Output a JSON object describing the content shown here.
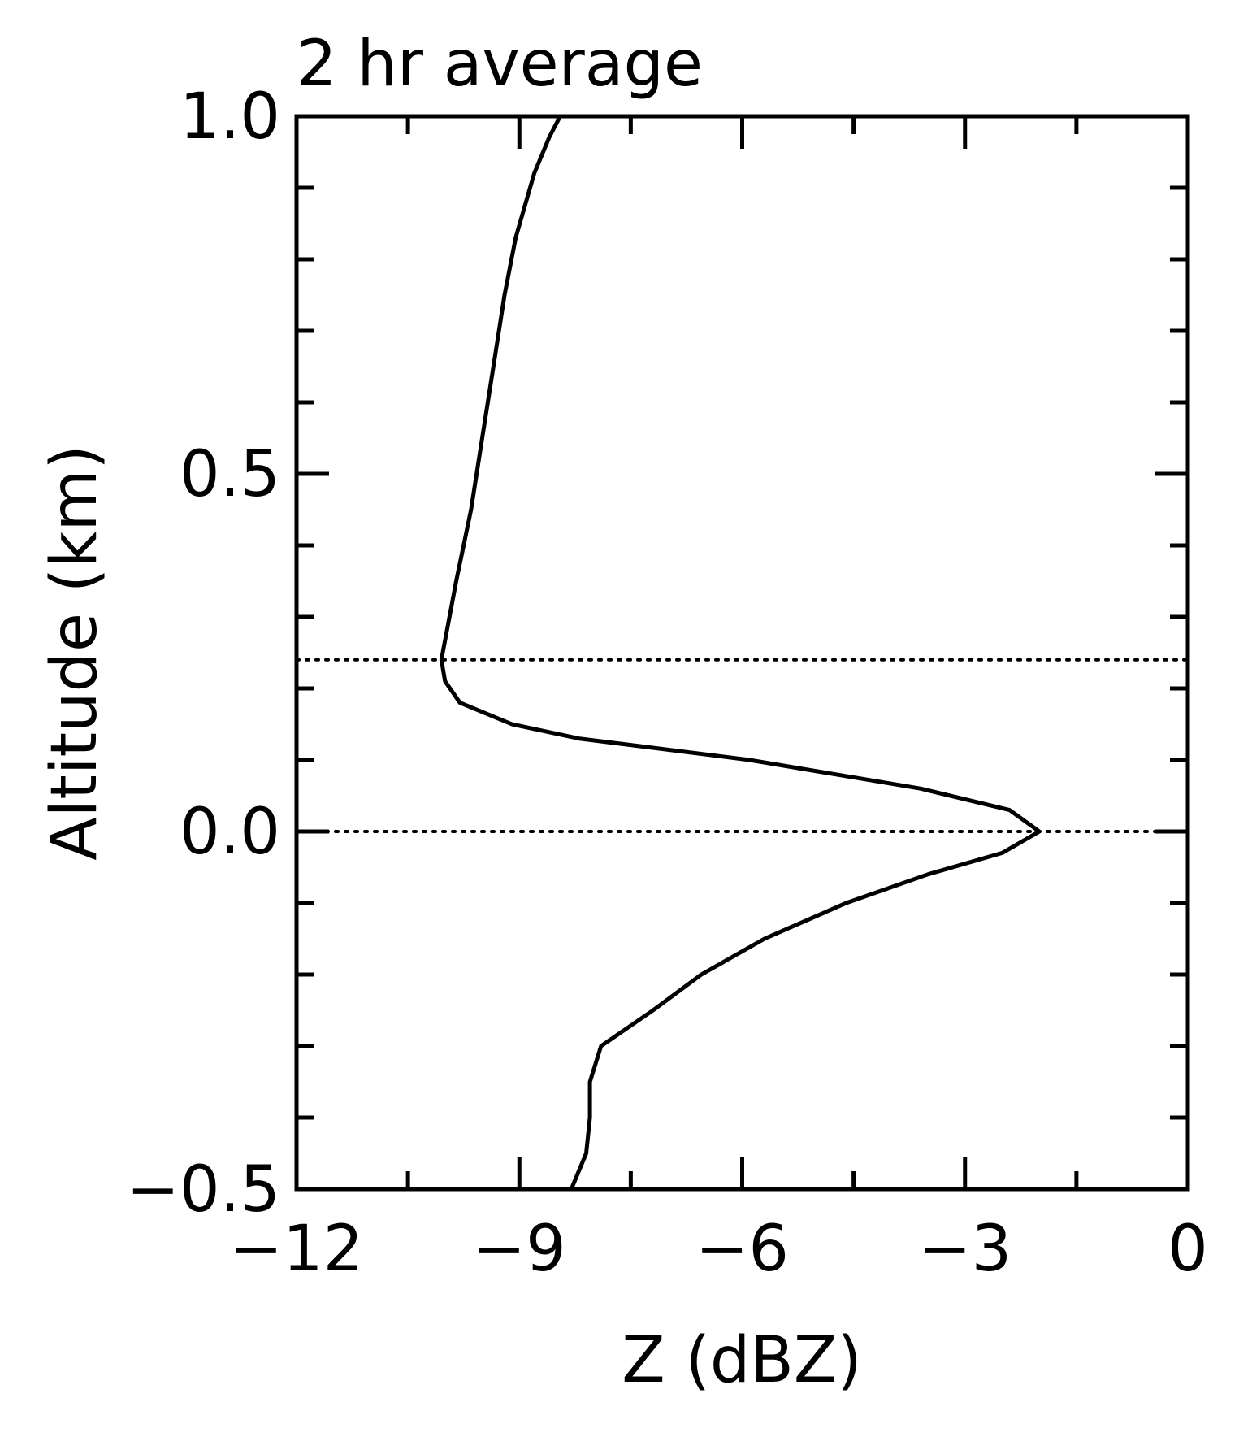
{
  "chart_data": {
    "type": "line",
    "title": "2 hr average",
    "xlabel": "Z (dBZ)",
    "ylabel": "Altitude (km)",
    "xlim": [
      -12,
      0
    ],
    "ylim": [
      -0.5,
      1.0
    ],
    "xticks": [
      -12,
      -9,
      -6,
      -3,
      0
    ],
    "xtick_labels": [
      "−12",
      "−9",
      "−6",
      "−3",
      "0"
    ],
    "yticks": [
      -0.5,
      0.0,
      0.5,
      1.0
    ],
    "ytick_labels": [
      "−0.5",
      "0.0",
      "0.5",
      "1.0"
    ],
    "x_minor_step": 1.5,
    "y_minor_step": 0.1,
    "grid": false,
    "reference_lines": [
      {
        "axis": "y",
        "value": 0.24,
        "style": "dotted"
      },
      {
        "axis": "y",
        "value": 0.0,
        "style": "dotted"
      }
    ],
    "series": [
      {
        "points": [
          {
            "x": -8.3,
            "y": -0.5
          },
          {
            "x": -8.1,
            "y": -0.45
          },
          {
            "x": -8.05,
            "y": -0.4
          },
          {
            "x": -8.05,
            "y": -0.35
          },
          {
            "x": -7.9,
            "y": -0.3
          },
          {
            "x": -7.2,
            "y": -0.25
          },
          {
            "x": -6.55,
            "y": -0.2
          },
          {
            "x": -5.7,
            "y": -0.15
          },
          {
            "x": -4.6,
            "y": -0.1
          },
          {
            "x": -3.5,
            "y": -0.06
          },
          {
            "x": -2.5,
            "y": -0.03
          },
          {
            "x": -2.0,
            "y": 0.0
          },
          {
            "x": -2.4,
            "y": 0.03
          },
          {
            "x": -3.6,
            "y": 0.06
          },
          {
            "x": -5.9,
            "y": 0.1
          },
          {
            "x": -8.2,
            "y": 0.13
          },
          {
            "x": -9.1,
            "y": 0.15
          },
          {
            "x": -9.8,
            "y": 0.18
          },
          {
            "x": -10.0,
            "y": 0.21
          },
          {
            "x": -10.05,
            "y": 0.24
          },
          {
            "x": -9.85,
            "y": 0.35
          },
          {
            "x": -9.65,
            "y": 0.45
          },
          {
            "x": -9.5,
            "y": 0.55
          },
          {
            "x": -9.35,
            "y": 0.65
          },
          {
            "x": -9.2,
            "y": 0.75
          },
          {
            "x": -9.05,
            "y": 0.83
          },
          {
            "x": -8.8,
            "y": 0.92
          },
          {
            "x": -8.6,
            "y": 0.97
          },
          {
            "x": -8.45,
            "y": 1.0
          }
        ]
      }
    ]
  }
}
